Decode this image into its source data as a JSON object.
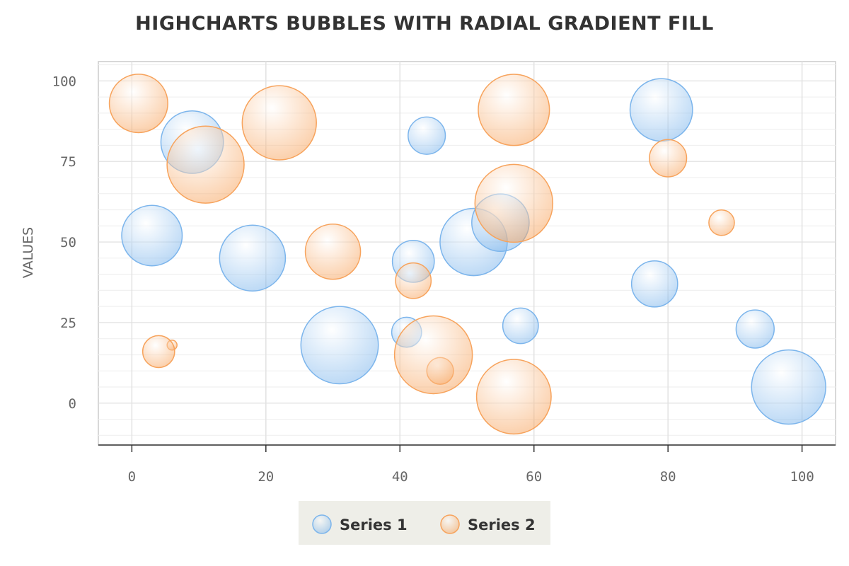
{
  "chart_data": {
    "type": "scatter",
    "subtype": "bubble",
    "title": "HIGHCHARTS BUBBLES WITH RADIAL GRADIENT FILL",
    "xlabel": "",
    "ylabel": "VALUES",
    "xlim": [
      -5,
      105
    ],
    "ylim": [
      -13,
      106
    ],
    "x_ticks": [
      0,
      20,
      40,
      60,
      80,
      100
    ],
    "y_ticks": [
      0,
      25,
      50,
      75,
      100
    ],
    "grid": true,
    "legend_position": "bottom-center",
    "series": [
      {
        "name": "Series 1",
        "color": "#7cb5ec",
        "points": [
          {
            "x": 9,
            "y": 81,
            "z": 63
          },
          {
            "x": 98,
            "y": 5,
            "z": 89
          },
          {
            "x": 51,
            "y": 50,
            "z": 73
          },
          {
            "x": 41,
            "y": 22,
            "z": 14
          },
          {
            "x": 58,
            "y": 24,
            "z": 20
          },
          {
            "x": 78,
            "y": 37,
            "z": 34
          },
          {
            "x": 55,
            "y": 56,
            "z": 53
          },
          {
            "x": 18,
            "y": 45,
            "z": 70
          },
          {
            "x": 42,
            "y": 44,
            "z": 28
          },
          {
            "x": 3,
            "y": 52,
            "z": 59
          },
          {
            "x": 31,
            "y": 18,
            "z": 97
          },
          {
            "x": 79,
            "y": 91,
            "z": 63
          },
          {
            "x": 93,
            "y": 23,
            "z": 23
          },
          {
            "x": 44,
            "y": 83,
            "z": 22
          }
        ]
      },
      {
        "name": "Series 2",
        "color": "#f7a35c",
        "points": [
          {
            "x": 42,
            "y": 38,
            "z": 20
          },
          {
            "x": 6,
            "y": 18,
            "z": 1
          },
          {
            "x": 1,
            "y": 93,
            "z": 55
          },
          {
            "x": 57,
            "y": 2,
            "z": 90
          },
          {
            "x": 80,
            "y": 76,
            "z": 22
          },
          {
            "x": 11,
            "y": 74,
            "z": 96
          },
          {
            "x": 88,
            "y": 56,
            "z": 10
          },
          {
            "x": 30,
            "y": 47,
            "z": 49
          },
          {
            "x": 57,
            "y": 62,
            "z": 98
          },
          {
            "x": 4,
            "y": 16,
            "z": 16
          },
          {
            "x": 46,
            "y": 10,
            "z": 11
          },
          {
            "x": 22,
            "y": 87,
            "z": 89
          },
          {
            "x": 57,
            "y": 91,
            "z": 82
          },
          {
            "x": 45,
            "y": 15,
            "z": 98
          }
        ]
      }
    ]
  },
  "legend": {
    "background": "#eeeee8"
  }
}
